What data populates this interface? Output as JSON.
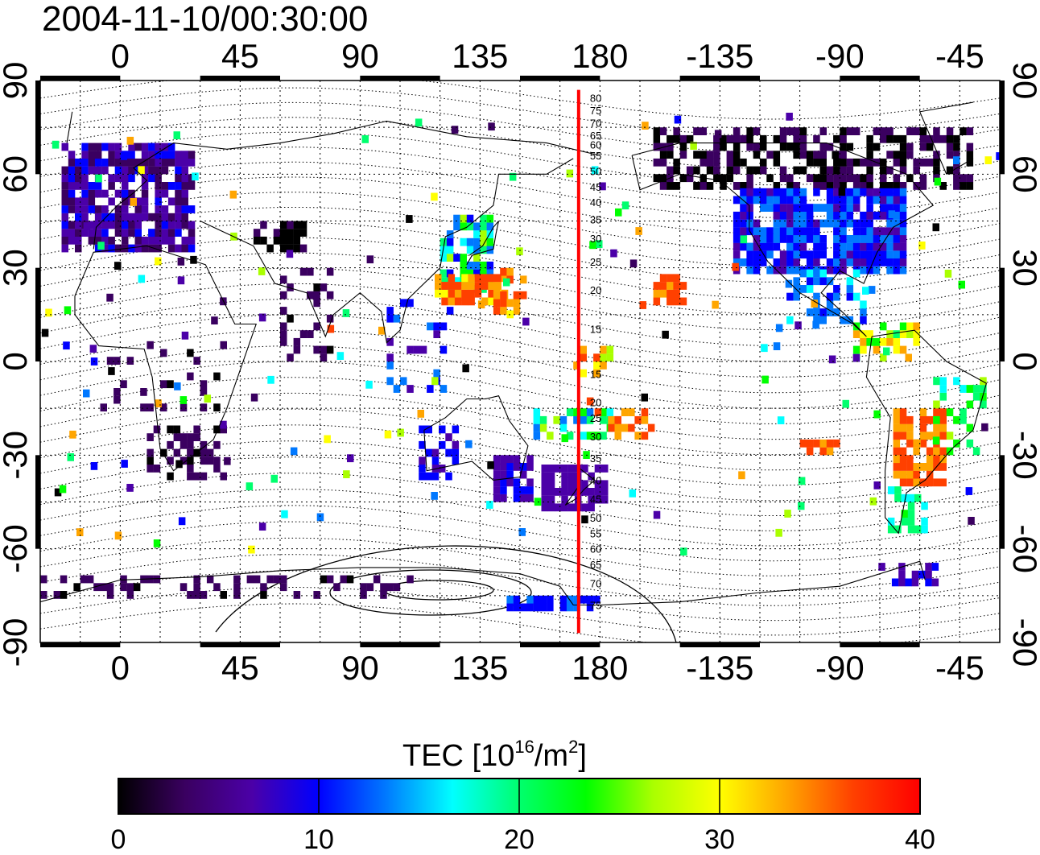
{
  "timestamp": "2004-11-10/00:30:00",
  "map": {
    "lon_ticks_top": [
      "0",
      "45",
      "90",
      "135",
      "180",
      "-135",
      "-90",
      "-45"
    ],
    "lon_ticks_bottom": [
      "0",
      "45",
      "90",
      "135",
      "180",
      "-135",
      "-90",
      "-45"
    ],
    "lat_ticks_left": [
      "90",
      "60",
      "30",
      "0",
      "-30",
      "-60",
      "-90"
    ],
    "lat_ticks_right": [
      "90",
      "60",
      "30",
      "0",
      "-30",
      "-60",
      "-90"
    ],
    "meridian_line_color": "#ff0000",
    "meridian_labels": [
      "80",
      "75",
      "70",
      "65",
      "60",
      "55",
      "50",
      "45",
      "40",
      "35",
      "30",
      "25",
      "20",
      "15",
      "15",
      "20",
      "25",
      "30",
      "35",
      "40",
      "45",
      "50",
      "55",
      "60",
      "65",
      "70",
      "75"
    ]
  },
  "colorbar": {
    "title_main": "TEC  [10",
    "title_exp1": "16",
    "title_mid": "/m",
    "title_exp2": "2",
    "title_end": "]",
    "tick_labels": [
      "0",
      "10",
      "20",
      "30",
      "40"
    ],
    "range": [
      0,
      40
    ],
    "colors": [
      "#000000",
      "#3a0060",
      "#4b00a8",
      "#0000ff",
      "#0078ff",
      "#00ffff",
      "#00ff6e",
      "#00ff00",
      "#aaff00",
      "#ffff00",
      "#ffa500",
      "#ff4000",
      "#ff0000"
    ]
  }
}
